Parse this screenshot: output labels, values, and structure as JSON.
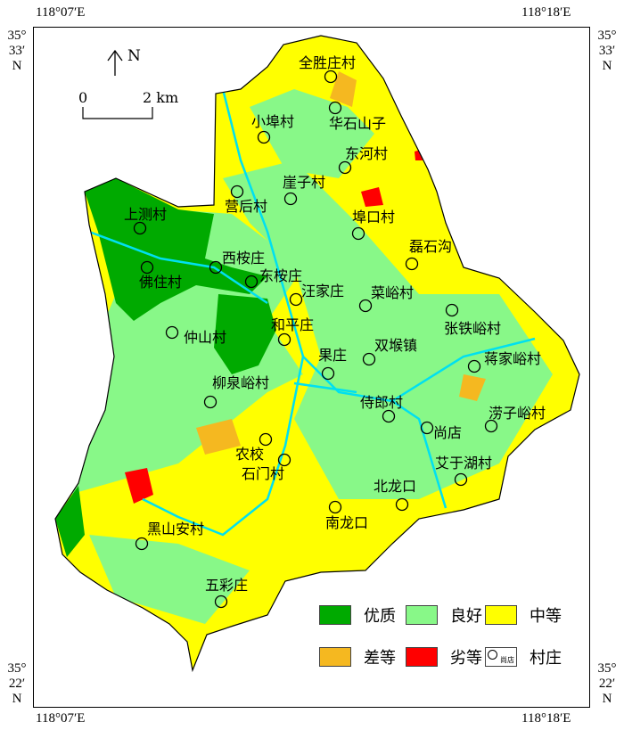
{
  "coordinates": {
    "top_left_lon": "118°07′E",
    "top_right_lon": "118°18′E",
    "bottom_left_lon": "118°07′E",
    "bottom_right_lon": "118°18′E",
    "lat_top": [
      "35°",
      "33′",
      "N"
    ],
    "lat_bottom": [
      "35°",
      "22′",
      "N"
    ]
  },
  "north_arrow": {
    "label": "N"
  },
  "scale_bar": {
    "start": "0",
    "end": "2 km"
  },
  "villages": [
    "全胜庄村",
    "华石山子",
    "小埠村",
    "东河村",
    "崖子村",
    "营后村",
    "上测村",
    "埠口村",
    "磊石沟",
    "西桉庄",
    "佛住村",
    "东桉庄",
    "汪家庄",
    "菜峪村",
    "张铁峪村",
    "仲山村",
    "和平庄",
    "果庄",
    "双堠镇",
    "蒋家峪村",
    "柳泉峪村",
    "侍郎村",
    "尚店",
    "涝子峪村",
    "农校",
    "石门村",
    "艾于湖村",
    "北龙口",
    "南龙口",
    "黑山安村",
    "五彩庄"
  ],
  "legend": {
    "items": [
      {
        "label": "优质",
        "color": "#00aa00"
      },
      {
        "label": "良好",
        "color": "#88f888"
      },
      {
        "label": "中等",
        "color": "#ffff00"
      },
      {
        "label": "差等",
        "color": "#f5b820"
      },
      {
        "label": "劣等",
        "color": "#ff0000"
      },
      {
        "label": "村庄",
        "sample": "尚店"
      }
    ]
  },
  "colors": {
    "river": "#00e0f0",
    "outline": "#000000"
  }
}
